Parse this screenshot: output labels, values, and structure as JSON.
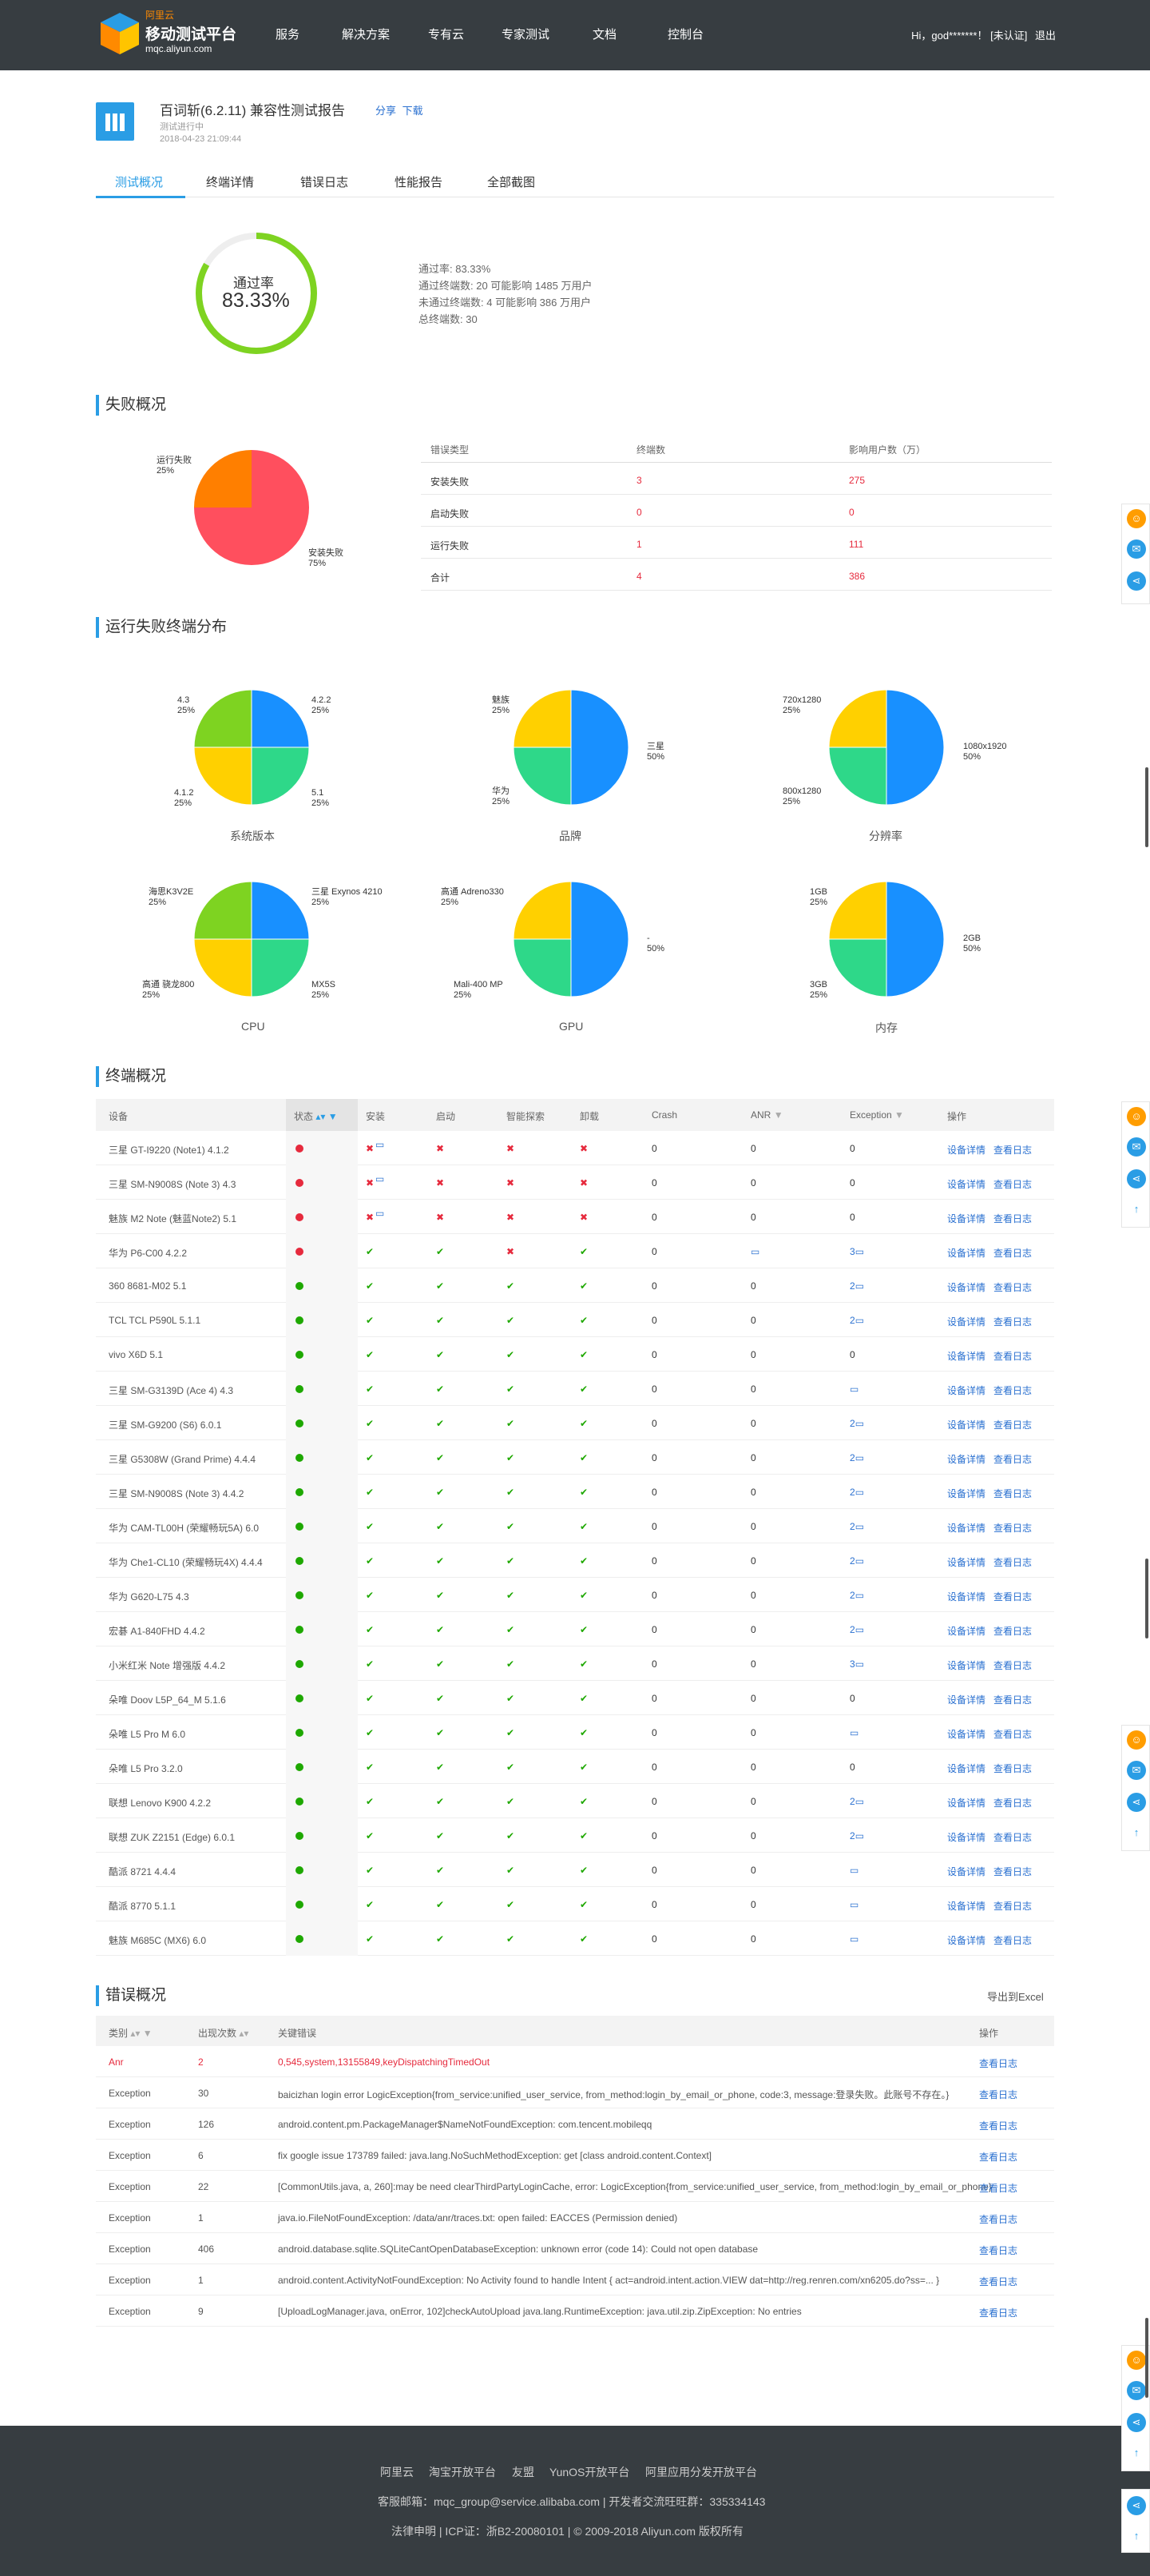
{
  "header": {
    "brand_top": "阿里云",
    "brand_name": "移动测试平台",
    "brand_url": "mqc.aliyun.com",
    "nav": [
      "服务",
      "解决方案",
      "专有云",
      "专家测试",
      "文档",
      "控制台"
    ],
    "greeting": "Hi，god*******！",
    "unverified": "[未认证]",
    "logout": "退出"
  },
  "report": {
    "title": "百词斩(6.2.11) 兼容性测试报告",
    "share": "分享",
    "download": "下载",
    "status": "测试进行中",
    "datetime": "2018-04-23 21:09:44"
  },
  "tabs": [
    "测试概况",
    "终端详情",
    "错误日志",
    "性能报告",
    "全部截图"
  ],
  "summary": {
    "ring_label": "通过率",
    "ring_value": "83.33%",
    "pass_rate": 0.8333,
    "lines": [
      "通过率: 83.33%",
      "通过终端数: 20 可能影响 1485 万用户",
      "未通过终端数: 4 可能影响 386 万用户",
      "总终端数: 30"
    ]
  },
  "fail": {
    "section_title": "失败概况",
    "pie": [
      {
        "label": "运行失败",
        "pct": "25%",
        "value": 25,
        "color": "#ff7f00"
      },
      {
        "label": "安装失败",
        "pct": "75%",
        "value": 75,
        "color": "#ff4f5e"
      }
    ],
    "table_head": [
      "错误类型",
      "终端数",
      "影响用户数（万）"
    ],
    "rows": [
      [
        "安装失败",
        "3",
        "275"
      ],
      [
        "启动失败",
        "0",
        "0"
      ],
      [
        "运行失败",
        "1",
        "111"
      ],
      [
        "合计",
        "4",
        "386"
      ]
    ]
  },
  "dist": {
    "section_title": "运行失败终端分布",
    "charts": [
      {
        "caption": "系统版本",
        "slices": [
          {
            "label": "4.2.2",
            "pct": "25%",
            "value": 25,
            "color": "#1890ff"
          },
          {
            "label": "5.1",
            "pct": "25%",
            "value": 25,
            "color": "#2ed889"
          },
          {
            "label": "4.1.2",
            "pct": "25%",
            "value": 25,
            "color": "#ffd000"
          },
          {
            "label": "4.3",
            "pct": "25%",
            "value": 25,
            "color": "#7ed321"
          }
        ]
      },
      {
        "caption": "品牌",
        "slices": [
          {
            "label": "三星",
            "pct": "50%",
            "value": 50,
            "color": "#1890ff"
          },
          {
            "label": "华为",
            "pct": "25%",
            "value": 25,
            "color": "#2ed889"
          },
          {
            "label": "魅族",
            "pct": "25%",
            "value": 25,
            "color": "#ffd000"
          }
        ]
      },
      {
        "caption": "分辨率",
        "slices": [
          {
            "label": "1080x1920",
            "pct": "50%",
            "value": 50,
            "color": "#1890ff"
          },
          {
            "label": "800x1280",
            "pct": "25%",
            "value": 25,
            "color": "#2ed889"
          },
          {
            "label": "720x1280",
            "pct": "25%",
            "value": 25,
            "color": "#ffd000"
          }
        ]
      },
      {
        "caption": "CPU",
        "slices": [
          {
            "label": "三星 Exynos 4210",
            "pct": "25%",
            "value": 25,
            "color": "#1890ff"
          },
          {
            "label": "MX5S",
            "pct": "25%",
            "value": 25,
            "color": "#2ed889"
          },
          {
            "label": "高通 骁龙800",
            "pct": "25%",
            "value": 25,
            "color": "#ffd000"
          },
          {
            "label": "海思K3V2E",
            "pct": "25%",
            "value": 25,
            "color": "#7ed321"
          }
        ]
      },
      {
        "caption": "GPU",
        "slices": [
          {
            "label": "-",
            "pct": "50%",
            "value": 50,
            "color": "#1890ff"
          },
          {
            "label": "Mali-400 MP",
            "pct": "25%",
            "value": 25,
            "color": "#2ed889"
          },
          {
            "label": "高通 Adreno330",
            "pct": "25%",
            "value": 25,
            "color": "#ffd000"
          }
        ]
      },
      {
        "caption": "内存",
        "slices": [
          {
            "label": "2GB",
            "pct": "50%",
            "value": 50,
            "color": "#1890ff"
          },
          {
            "label": "3GB",
            "pct": "25%",
            "value": 25,
            "color": "#2ed889"
          },
          {
            "label": "1GB",
            "pct": "25%",
            "value": 25,
            "color": "#ffd000"
          }
        ]
      }
    ]
  },
  "devices": {
    "section_title": "终端概况",
    "head": [
      "设备",
      "状态",
      "安装",
      "启动",
      "智能探索",
      "卸载",
      "Crash",
      "ANR",
      "Exception",
      "操作"
    ],
    "detail_link": "设备详情",
    "log_link": "查看日志",
    "rows": [
      {
        "name": "三星 GT-I9220 (Note1) 4.1.2",
        "ok": false,
        "s": [
          "x",
          "x",
          "x",
          "x"
        ],
        "crash": "0",
        "anr": "0",
        "exc": "0",
        "install_note": true
      },
      {
        "name": "三星 SM-N9008S (Note 3) 4.3",
        "ok": false,
        "s": [
          "x",
          "x",
          "x",
          "x"
        ],
        "crash": "0",
        "anr": "0",
        "exc": "0",
        "install_note": true
      },
      {
        "name": "魅族 M2 Note (魅蓝Note2) 5.1",
        "ok": false,
        "s": [
          "x",
          "x",
          "x",
          "x"
        ],
        "crash": "0",
        "anr": "0",
        "exc": "0",
        "install_note": true
      },
      {
        "name": "华为 P6-C00 4.2.2",
        "ok": false,
        "s": [
          "v",
          "v",
          "x",
          "v"
        ],
        "crash": "0",
        "anr": "",
        "exc": "3"
      },
      {
        "name": "360 8681-M02 5.1",
        "ok": true,
        "s": [
          "v",
          "v",
          "v",
          "v"
        ],
        "crash": "0",
        "anr": "0",
        "exc": "2"
      },
      {
        "name": "TCL TCL P590L 5.1.1",
        "ok": true,
        "s": [
          "v",
          "v",
          "v",
          "v"
        ],
        "crash": "0",
        "anr": "0",
        "exc": "2"
      },
      {
        "name": "vivo X6D 5.1",
        "ok": true,
        "s": [
          "v",
          "v",
          "v",
          "v"
        ],
        "crash": "0",
        "anr": "0",
        "exc": "0"
      },
      {
        "name": "三星 SM-G3139D (Ace 4) 4.3",
        "ok": true,
        "s": [
          "v",
          "v",
          "v",
          "v"
        ],
        "crash": "0",
        "anr": "0",
        "exc": ""
      },
      {
        "name": "三星 SM-G9200 (S6) 6.0.1",
        "ok": true,
        "s": [
          "v",
          "v",
          "v",
          "v"
        ],
        "crash": "0",
        "anr": "0",
        "exc": "2"
      },
      {
        "name": "三星 G5308W (Grand Prime) 4.4.4",
        "ok": true,
        "s": [
          "v",
          "v",
          "v",
          "v"
        ],
        "crash": "0",
        "anr": "0",
        "exc": "2"
      },
      {
        "name": "三星 SM-N9008S (Note 3) 4.4.2",
        "ok": true,
        "s": [
          "v",
          "v",
          "v",
          "v"
        ],
        "crash": "0",
        "anr": "0",
        "exc": "2"
      },
      {
        "name": "华为 CAM-TL00H (荣耀畅玩5A) 6.0",
        "ok": true,
        "s": [
          "v",
          "v",
          "v",
          "v"
        ],
        "crash": "0",
        "anr": "0",
        "exc": "2"
      },
      {
        "name": "华为 Che1-CL10 (荣耀畅玩4X) 4.4.4",
        "ok": true,
        "s": [
          "v",
          "v",
          "v",
          "v"
        ],
        "crash": "0",
        "anr": "0",
        "exc": "2"
      },
      {
        "name": "华为 G620-L75 4.3",
        "ok": true,
        "s": [
          "v",
          "v",
          "v",
          "v"
        ],
        "crash": "0",
        "anr": "0",
        "exc": "2"
      },
      {
        "name": "宏碁 A1-840FHD 4.4.2",
        "ok": true,
        "s": [
          "v",
          "v",
          "v",
          "v"
        ],
        "crash": "0",
        "anr": "0",
        "exc": "2"
      },
      {
        "name": "小米红米 Note 增强版 4.4.2",
        "ok": true,
        "s": [
          "v",
          "v",
          "v",
          "v"
        ],
        "crash": "0",
        "anr": "0",
        "exc": "3"
      },
      {
        "name": "朵唯 Doov L5P_64_M 5.1.6",
        "ok": true,
        "s": [
          "v",
          "v",
          "v",
          "v"
        ],
        "crash": "0",
        "anr": "0",
        "exc": "0"
      },
      {
        "name": "朵唯 L5 Pro M 6.0",
        "ok": true,
        "s": [
          "v",
          "v",
          "v",
          "v"
        ],
        "crash": "0",
        "anr": "0",
        "exc": ""
      },
      {
        "name": "朵唯 L5 Pro 3.2.0",
        "ok": true,
        "s": [
          "v",
          "v",
          "v",
          "v"
        ],
        "crash": "0",
        "anr": "0",
        "exc": "0"
      },
      {
        "name": "联想 Lenovo K900 4.2.2",
        "ok": true,
        "s": [
          "v",
          "v",
          "v",
          "v"
        ],
        "crash": "0",
        "anr": "0",
        "exc": "2"
      },
      {
        "name": "联想 ZUK Z2151 (Edge) 6.0.1",
        "ok": true,
        "s": [
          "v",
          "v",
          "v",
          "v"
        ],
        "crash": "0",
        "anr": "0",
        "exc": "2"
      },
      {
        "name": "酷派 8721 4.4.4",
        "ok": true,
        "s": [
          "v",
          "v",
          "v",
          "v"
        ],
        "crash": "0",
        "anr": "0",
        "exc": ""
      },
      {
        "name": "酷派 8770 5.1.1",
        "ok": true,
        "s": [
          "v",
          "v",
          "v",
          "v"
        ],
        "crash": "0",
        "anr": "0",
        "exc": ""
      },
      {
        "name": "魅族 M685C (MX6) 6.0",
        "ok": true,
        "s": [
          "v",
          "v",
          "v",
          "v"
        ],
        "crash": "0",
        "anr": "0",
        "exc": ""
      }
    ]
  },
  "errors": {
    "section_title": "错误概况",
    "export": "导出到Excel",
    "head": [
      "类别",
      "出现次数",
      "关键错误",
      "操作"
    ],
    "log_link": "查看日志",
    "rows": [
      {
        "type": "Anr",
        "count": "2",
        "msg": "0,545,system,13155849,keyDispatchingTimedOut",
        "hl": true
      },
      {
        "type": "Exception",
        "count": "30",
        "msg": "baicizhan login error LogicException{from_service:unified_user_service, from_method:login_by_email_or_phone, code:3, message:登录失败。此账号不存在。}"
      },
      {
        "type": "Exception",
        "count": "126",
        "msg": "android.content.pm.PackageManager$NameNotFoundException: com.tencent.mobileqq"
      },
      {
        "type": "Exception",
        "count": "6",
        "msg": "fix google issue 173789 failed: java.lang.NoSuchMethodException: get [class android.content.Context]"
      },
      {
        "type": "Exception",
        "count": "22",
        "msg": "[CommonUtils.java, a, 260]:may be need clearThirdPartyLoginCache, error: LogicException{from_service:unified_user_service, from_method:login_by_email_or_phone}"
      },
      {
        "type": "Exception",
        "count": "1",
        "msg": "java.io.FileNotFoundException: /data/anr/traces.txt: open failed: EACCES (Permission denied)"
      },
      {
        "type": "Exception",
        "count": "406",
        "msg": "android.database.sqlite.SQLiteCantOpenDatabaseException: unknown error (code 14): Could not open database"
      },
      {
        "type": "Exception",
        "count": "1",
        "msg": "android.content.ActivityNotFoundException: No Activity found to handle Intent { act=android.intent.action.VIEW dat=http://reg.renren.com/xn6205.do?ss=... }"
      },
      {
        "type": "Exception",
        "count": "9",
        "msg": "[UploadLogManager.java, onError, 102]checkAutoUpload java.lang.RuntimeException: java.util.zip.ZipException: No entries"
      }
    ]
  },
  "footer": {
    "links": [
      "阿里云",
      "淘宝开放平台",
      "友盟",
      "YunOS开放平台",
      "阿里应用分发开放平台"
    ],
    "contact": "客服邮箱：mqc_group@service.alibaba.com | 开发者交流旺旺群：335334143",
    "legal": "法律申明 | ICP证：浙B2-20080101 | © 2009-2018 Aliyun.com 版权所有"
  }
}
